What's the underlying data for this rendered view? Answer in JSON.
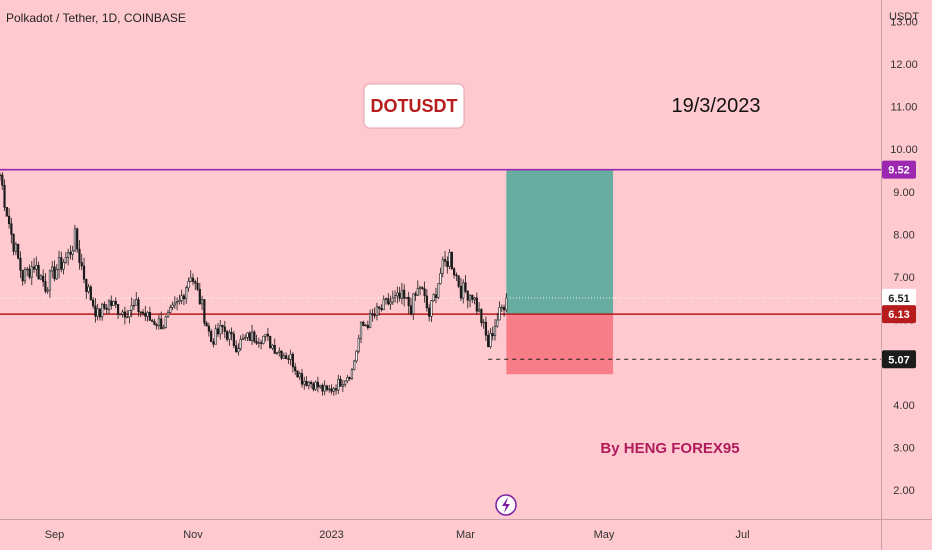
{
  "header": {
    "symbol_title": "Polkadot / Tether, 1D, COINBASE"
  },
  "annotations": {
    "ticker_label": "DOTUSDT",
    "date_label": "19/3/2023",
    "author_label": "By HENG FOREX95"
  },
  "colors": {
    "background": "#ffc9d0",
    "resistance_line": "#9c27b0",
    "entry_line": "#b71c1c",
    "target_zone": "#66ad9f",
    "stop_zone": "#f77d88",
    "author_text": "#b01c5b",
    "candle": "#1a1a1a"
  },
  "chart_data": {
    "type": "candlestick",
    "title": "Polkadot / Tether, 1D, COINBASE",
    "y_axis_unit": "USDT",
    "y_ticks": [
      "13.00",
      "12.00",
      "11.00",
      "10.00",
      "9.00",
      "8.00",
      "7.00",
      "6.00",
      "5.00",
      "4.00",
      "3.00",
      "2.00"
    ],
    "y_tick_values": [
      13,
      12,
      11,
      10,
      9,
      8,
      7,
      6,
      5,
      4,
      3,
      2
    ],
    "ylim": [
      1.3,
      13.5
    ],
    "x_ticks": [
      "Sep",
      "Nov",
      "2023",
      "Mar",
      "May",
      "Jul"
    ],
    "x_tick_dates": [
      "2022-09-01",
      "2022-11-01",
      "2023-01-01",
      "2023-03-01",
      "2023-05-01",
      "2023-07-01"
    ],
    "xlim": [
      "2022-08-08",
      "2023-08-31"
    ],
    "close_path": [
      [
        "2022-08-08",
        9.4
      ],
      [
        "2022-08-13",
        8.0
      ],
      [
        "2022-08-18",
        7.0
      ],
      [
        "2022-08-23",
        7.3
      ],
      [
        "2022-08-28",
        6.8
      ],
      [
        "2022-09-02",
        7.2
      ],
      [
        "2022-09-07",
        7.5
      ],
      [
        "2022-09-10",
        7.9
      ],
      [
        "2022-09-15",
        6.8
      ],
      [
        "2022-09-20",
        6.1
      ],
      [
        "2022-09-25",
        6.4
      ],
      [
        "2022-10-01",
        6.2
      ],
      [
        "2022-10-07",
        6.3
      ],
      [
        "2022-10-13",
        6.0
      ],
      [
        "2022-10-19",
        5.9
      ],
      [
        "2022-10-26",
        6.4
      ],
      [
        "2022-10-31",
        7.1
      ],
      [
        "2022-11-05",
        6.3
      ],
      [
        "2022-11-09",
        5.5
      ],
      [
        "2022-11-14",
        5.8
      ],
      [
        "2022-11-20",
        5.4
      ],
      [
        "2022-11-26",
        5.6
      ],
      [
        "2022-12-02",
        5.6
      ],
      [
        "2022-12-08",
        5.3
      ],
      [
        "2022-12-14",
        5.1
      ],
      [
        "2022-12-19",
        4.6
      ],
      [
        "2022-12-24",
        4.5
      ],
      [
        "2022-12-30",
        4.3
      ],
      [
        "2023-01-04",
        4.5
      ],
      [
        "2023-01-10",
        4.8
      ],
      [
        "2023-01-14",
        5.8
      ],
      [
        "2023-01-20",
        6.1
      ],
      [
        "2023-01-26",
        6.4
      ],
      [
        "2023-02-01",
        6.5
      ],
      [
        "2023-02-05",
        6.3
      ],
      [
        "2023-02-09",
        6.8
      ],
      [
        "2023-02-13",
        6.1
      ],
      [
        "2023-02-18",
        7.1
      ],
      [
        "2023-02-22",
        7.5
      ],
      [
        "2023-02-27",
        6.7
      ],
      [
        "2023-03-04",
        6.6
      ],
      [
        "2023-03-08",
        6.0
      ],
      [
        "2023-03-11",
        5.4
      ],
      [
        "2023-03-14",
        5.9
      ],
      [
        "2023-03-19",
        6.51
      ]
    ],
    "price_labels": [
      {
        "value": 9.52,
        "text": "9.52"
      },
      {
        "value": 6.51,
        "text": "6.51"
      },
      {
        "value": 6.13,
        "text": "6.13"
      },
      {
        "value": 5.07,
        "text": "5.07"
      }
    ],
    "levels": {
      "resistance": 9.52,
      "entry": 6.13,
      "support_dashed": 5.07
    },
    "position_tool": {
      "start_date": "2023-03-19",
      "end_date": "2023-05-05",
      "target": 9.52,
      "entry": 6.13,
      "stop": 4.72
    },
    "support_dashed_start": "2023-03-11"
  }
}
